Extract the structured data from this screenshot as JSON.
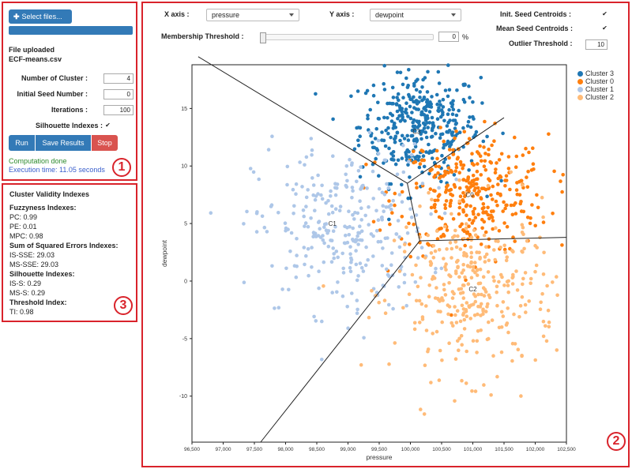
{
  "left_panel": {
    "select_files_label": "Select files...",
    "file_status": "File uploaded",
    "file_name": "ECF-means.csv",
    "params": [
      {
        "label": "Number of Cluster :",
        "value": "4"
      },
      {
        "label": "Initial Seed Number :",
        "value": "0"
      },
      {
        "label": "Iterations :",
        "value": "100"
      }
    ],
    "silhouette_label": "Silhouette Indexes :",
    "silhouette_checked": true,
    "buttons": {
      "run": "Run",
      "save": "Save Results",
      "stop": "Stop"
    },
    "status_done": "Computation done",
    "status_time": "Execution time: 11.05 seconds",
    "badge": "1"
  },
  "validity_panel": {
    "title": "Cluster Validity Indexes",
    "lines": [
      {
        "text": "Fuzzyness Indexes:",
        "bold": true
      },
      {
        "text": "PC: 0.99",
        "bold": false
      },
      {
        "text": "PE: 0.01",
        "bold": false
      },
      {
        "text": "MPC: 0.98",
        "bold": false
      },
      {
        "text": "Sum of Squared Errors Indexes:",
        "bold": true
      },
      {
        "text": "IS-SSE: 29.03",
        "bold": false
      },
      {
        "text": "MS-SSE: 29.03",
        "bold": false
      },
      {
        "text": "Silhouette Indexes:",
        "bold": true
      },
      {
        "text": "IS-S: 0.29",
        "bold": false
      },
      {
        "text": "MS-S: 0.29",
        "bold": false
      },
      {
        "text": "Threshold Index:",
        "bold": true
      },
      {
        "text": "TI: 0.98",
        "bold": false
      }
    ],
    "badge": "3"
  },
  "controls": {
    "x_axis_label": "X axis :",
    "x_axis_value": "pressure",
    "y_axis_label": "Y axis :",
    "y_axis_value": "dewpoint",
    "init_seed_label": "Init. Seed Centroids :",
    "init_seed_checked": true,
    "mean_seed_label": "Mean Seed Centroids :",
    "mean_seed_checked": true,
    "membership_label": "Membership Threshold :",
    "membership_value": "0",
    "membership_unit": "%",
    "outlier_label": "Outlier Threshold :",
    "outlier_value": "10"
  },
  "plot_badge": "2",
  "chart_data": {
    "type": "scatter",
    "xlabel": "pressure",
    "ylabel": "dewpoint",
    "xlim": [
      96500,
      102500
    ],
    "ylim": [
      -14,
      18.8
    ],
    "x_ticks": [
      "96,500",
      "97,000",
      "97,500",
      "98,000",
      "98,500",
      "99,000",
      "99,500",
      "100,000",
      "100,500",
      "101,000",
      "101,500",
      "102,000",
      "102,500"
    ],
    "y_ticks": [
      "-10",
      "-5",
      "0",
      "5",
      "10",
      "15"
    ],
    "legend": [
      {
        "name": "Cluster 3",
        "color": "#1f77b4"
      },
      {
        "name": "Cluster 0",
        "color": "#ff7f0e"
      },
      {
        "name": "Cluster 1",
        "color": "#aec7e8"
      },
      {
        "name": "Cluster 2",
        "color": "#ffbb78"
      }
    ],
    "centroids": [
      {
        "label": "C3",
        "x": 100100,
        "y": 13
      },
      {
        "label": "C0",
        "x": 100950,
        "y": 7.5
      },
      {
        "label": "C1",
        "x": 98750,
        "y": 5
      },
      {
        "label": "C2",
        "x": 101000,
        "y": -0.7
      }
    ],
    "boundaries": [
      [
        [
          96600,
          19.5
        ],
        [
          99950,
          8.5
        ]
      ],
      [
        [
          99950,
          8.5
        ],
        [
          101500,
          14.2
        ]
      ],
      [
        [
          99950,
          8.5
        ],
        [
          100150,
          3.5
        ]
      ],
      [
        [
          100150,
          3.5
        ],
        [
          102500,
          3.8
        ]
      ],
      [
        [
          100150,
          3.5
        ],
        [
          97600,
          -14
        ]
      ]
    ]
  }
}
